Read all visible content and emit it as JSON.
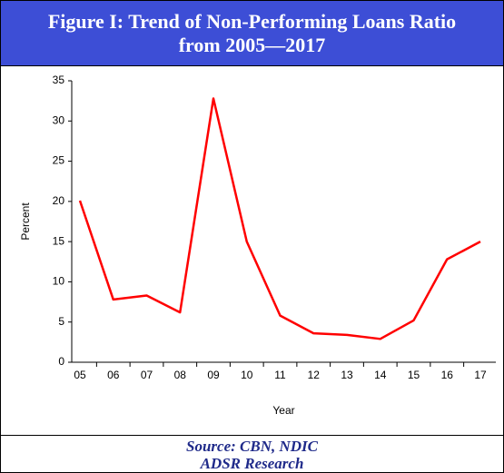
{
  "chart_data": {
    "type": "line",
    "title": "Figure I: Trend of Non-Performing Loans Ratio from 2005—2017",
    "x_label": "Year",
    "y_label": "Percent",
    "categories": [
      "05",
      "06",
      "07",
      "08",
      "09",
      "10",
      "11",
      "12",
      "13",
      "14",
      "15",
      "16",
      "17"
    ],
    "values": [
      20.1,
      7.8,
      8.3,
      6.2,
      32.8,
      15.0,
      5.8,
      3.6,
      3.4,
      2.9,
      5.2,
      12.8,
      15.0
    ],
    "color": "#ff0000",
    "ylim": [
      0,
      35
    ],
    "yticks": [
      0,
      5,
      10,
      15,
      20,
      25,
      30,
      35
    ],
    "source": [
      "Source: CBN, NDIC",
      "ADSR Research"
    ]
  }
}
